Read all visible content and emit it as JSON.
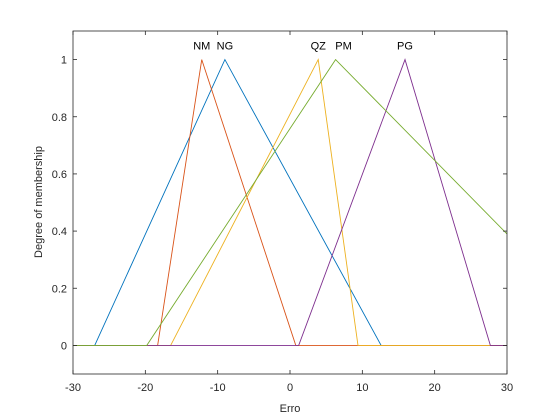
{
  "chart_data": {
    "type": "line",
    "xlabel": "Erro",
    "ylabel": "Degree of membership",
    "xlim": [
      -30,
      30
    ],
    "ylim": [
      -0.1,
      1.1
    ],
    "xticks": [
      -30,
      -20,
      -10,
      0,
      10,
      20,
      30
    ],
    "yticks": [
      0,
      0.2,
      0.4,
      0.6,
      0.8,
      1
    ],
    "xtick_labels": [
      "-30",
      "-20",
      "-10",
      "0",
      "10",
      "20",
      "30"
    ],
    "ytick_labels": [
      "0",
      "0.2",
      "0.4",
      "0.6",
      "0.8",
      "1"
    ],
    "grid": false,
    "series": [
      {
        "name": "NG",
        "color": "#0072BD",
        "x": [
          -30,
          -27,
          -9,
          12.6,
          30
        ],
        "y": [
          0,
          0,
          1,
          0,
          0
        ]
      },
      {
        "name": "NM",
        "color": "#D95319",
        "x": [
          -30,
          -18.3,
          -12.2,
          0.8,
          30
        ],
        "y": [
          0,
          0,
          1,
          0,
          0
        ]
      },
      {
        "name": "QZ",
        "color": "#EDB120",
        "x": [
          -30,
          -16.5,
          3.9,
          9.4,
          30
        ],
        "y": [
          0,
          0,
          1,
          0,
          0
        ]
      },
      {
        "name": "PG",
        "color": "#7E2F8E",
        "x": [
          -30,
          1.2,
          15.9,
          27.7,
          30
        ],
        "y": [
          0,
          0,
          1,
          0,
          0
        ]
      },
      {
        "name": "PM",
        "color": "#77AC30",
        "x": [
          -30,
          -19.8,
          6.3,
          30
        ],
        "y": [
          0,
          0,
          1,
          0.39
        ]
      }
    ],
    "labels": [
      {
        "text": "NM",
        "x": -12.2
      },
      {
        "text": "NG",
        "x": -9.0
      },
      {
        "text": "QZ",
        "x": 3.9
      },
      {
        "text": "PM",
        "x": 7.4
      },
      {
        "text": "PG",
        "x": 15.9
      }
    ]
  }
}
